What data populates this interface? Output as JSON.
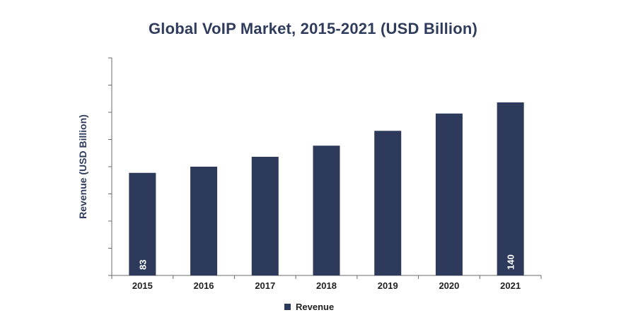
{
  "chart_data": {
    "type": "bar",
    "title": "Global VoIP Market, 2015-2021 (USD Billion)",
    "xlabel": "",
    "ylabel": "Revenue (USD Billion)",
    "categories": [
      "2015",
      "2016",
      "2017",
      "2018",
      "2019",
      "2020",
      "2021"
    ],
    "series": [
      {
        "name": "Revenue",
        "values": [
          83,
          88,
          96,
          105,
          117,
          131,
          140
        ],
        "color": "#2e3a5c"
      }
    ],
    "data_labels": [
      "83",
      "",
      "",
      "",
      "",
      "",
      "140"
    ],
    "ylim": [
      0,
      176
    ],
    "y_tick_count": 8,
    "y_tick_labels_shown": false,
    "grid": false,
    "legend_position": "bottom-center"
  }
}
